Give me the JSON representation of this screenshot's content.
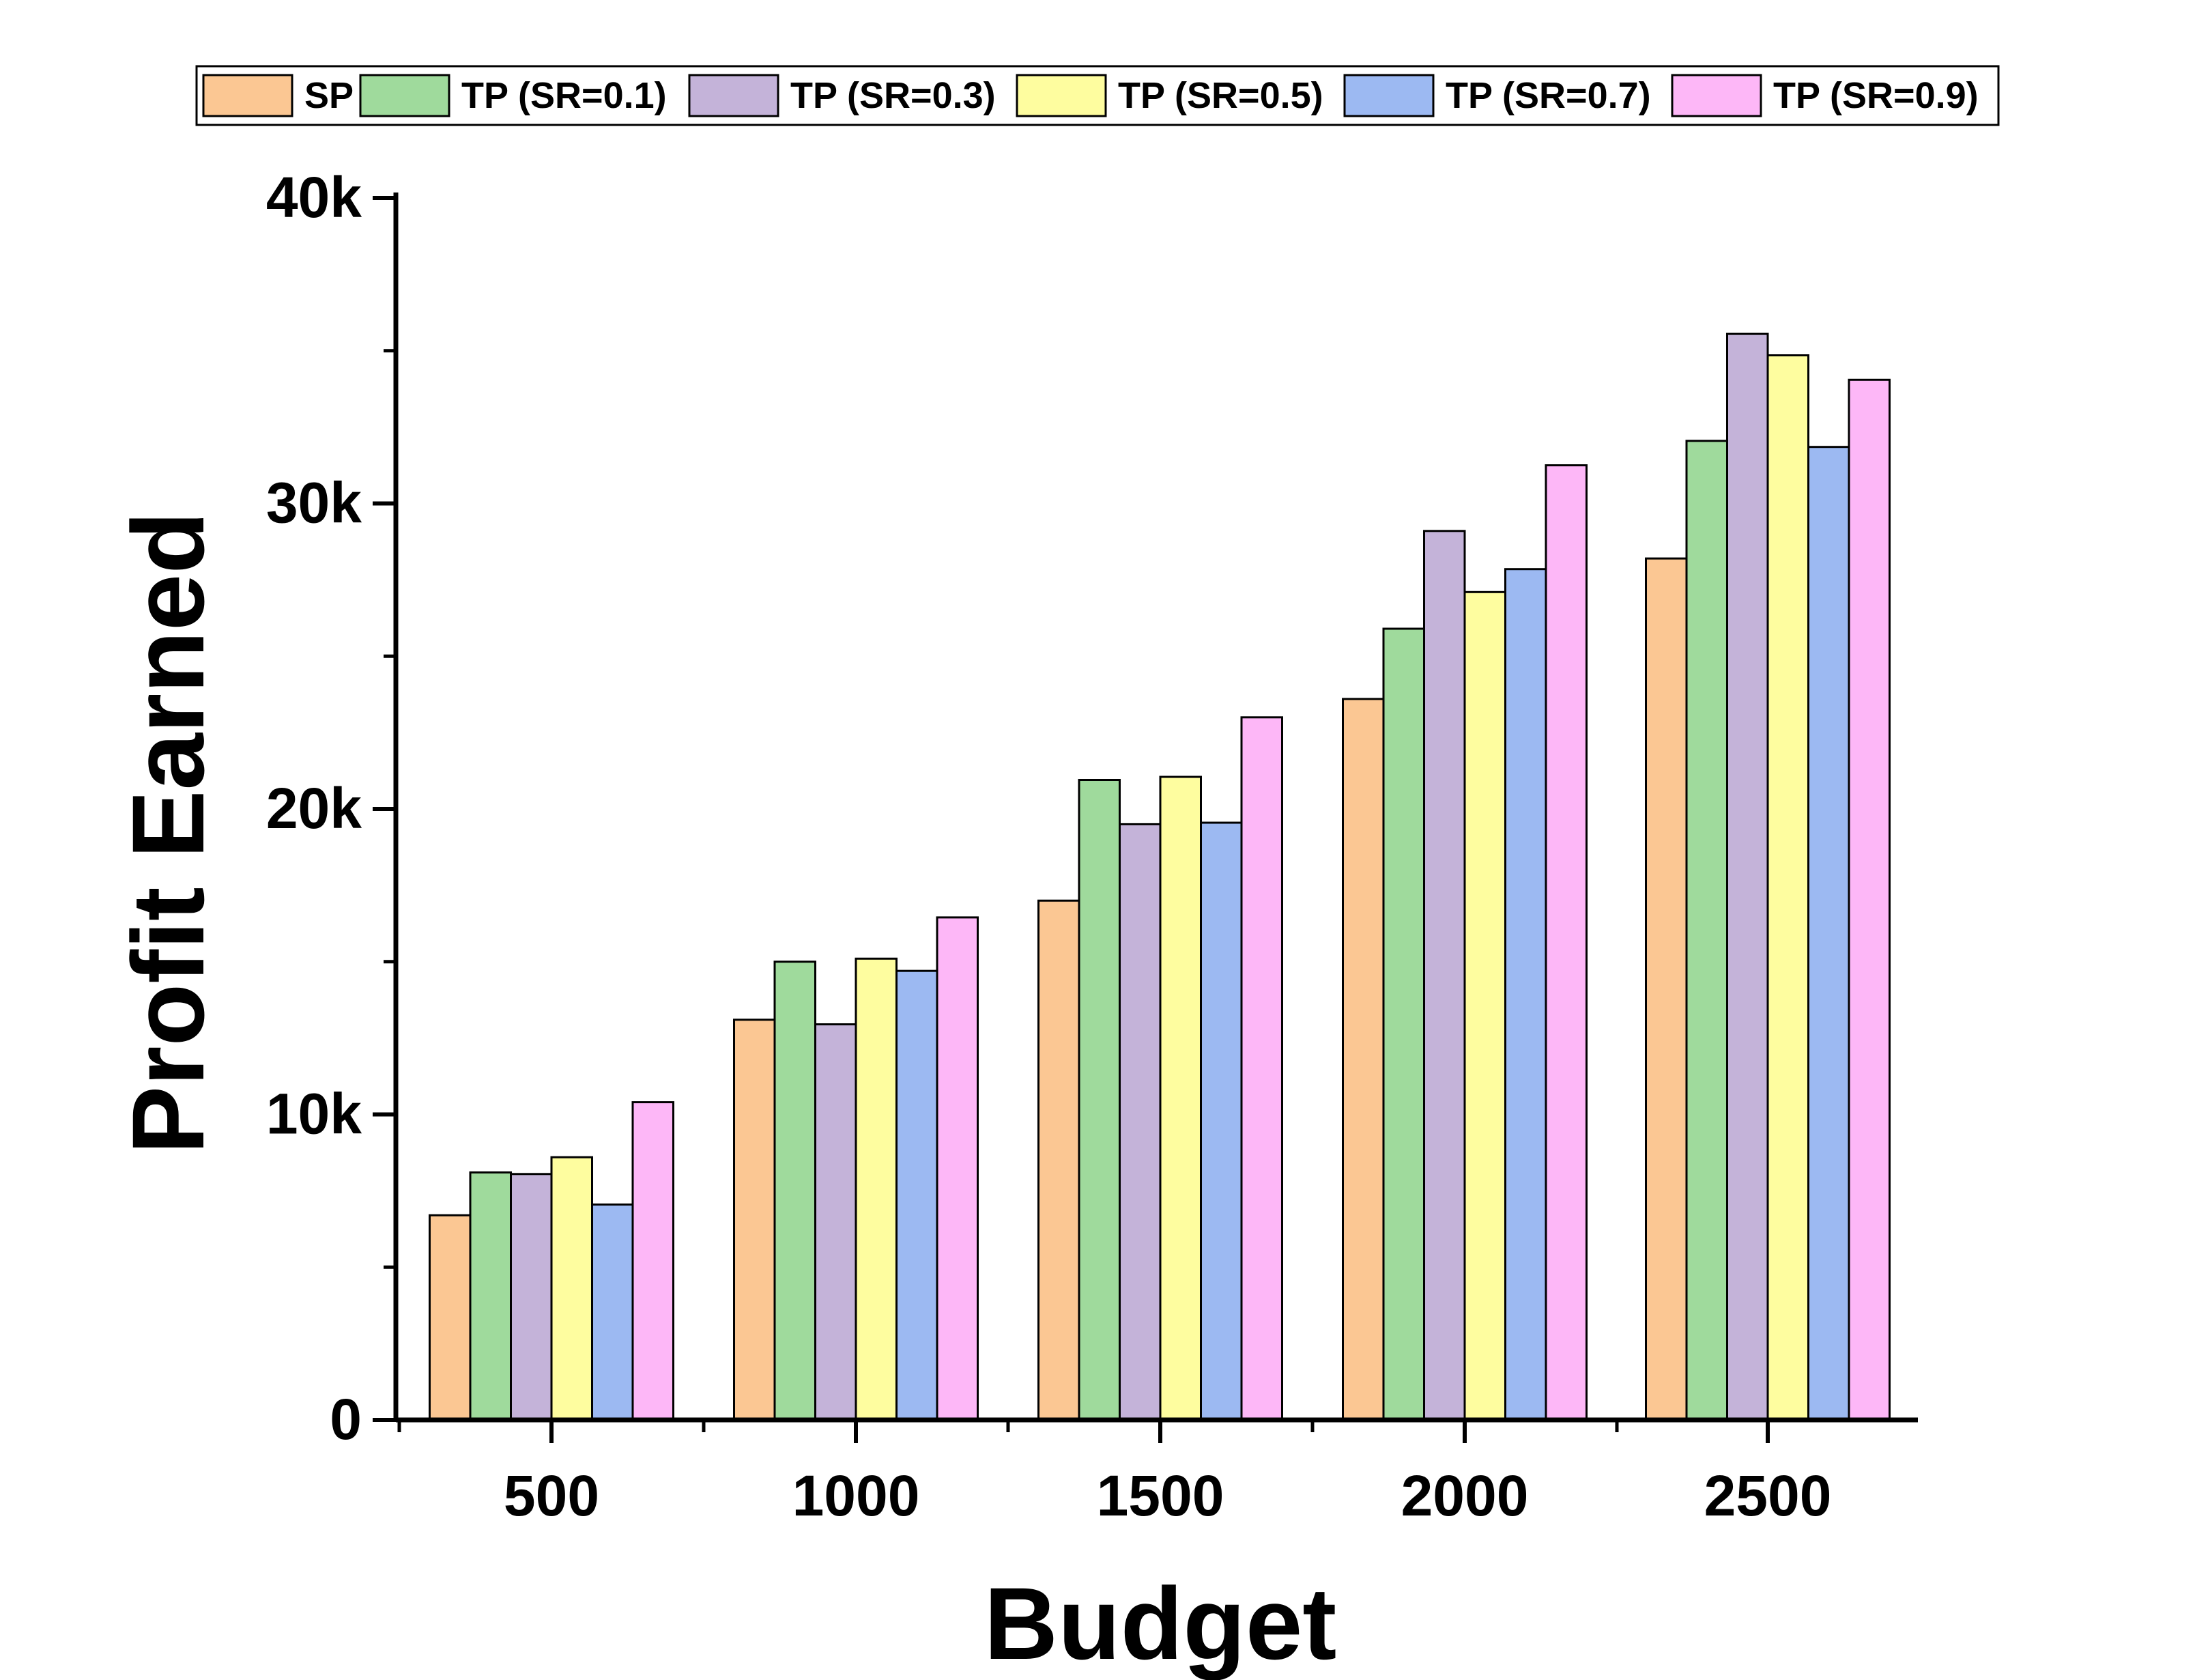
{
  "chart_data": {
    "type": "bar",
    "xlabel": "Budget",
    "ylabel": "Profit Earned",
    "categories": [
      "500",
      "1000",
      "1500",
      "2000",
      "2500"
    ],
    "ylim": [
      0,
      40000
    ],
    "yticks": [
      0,
      10000,
      20000,
      30000,
      40000
    ],
    "ytick_labels": [
      "0",
      "10k",
      "20k",
      "30k",
      "40k"
    ],
    "legend_position": "top",
    "series": [
      {
        "name": "SP",
        "color": "#FBC793",
        "values": [
          6700,
          13100,
          17000,
          23600,
          28200
        ]
      },
      {
        "name": "TP (SR=0.1)",
        "color": "#9FDA9C",
        "values": [
          8100,
          15000,
          20950,
          25900,
          32050
        ]
      },
      {
        "name": "TP (SR=0.3)",
        "color": "#C4B3D9",
        "values": [
          8050,
          12950,
          19500,
          29100,
          35550
        ]
      },
      {
        "name": "TP (SR=0.5)",
        "color": "#FEFD9F",
        "values": [
          8600,
          15100,
          21050,
          27100,
          34850
        ]
      },
      {
        "name": "TP (SR=0.7)",
        "color": "#9CB9F2",
        "values": [
          7050,
          14700,
          19550,
          27850,
          31850
        ]
      },
      {
        "name": "TP (SR=0.9)",
        "color": "#FDB7F7",
        "values": [
          10400,
          16450,
          23000,
          31250,
          34050
        ]
      }
    ]
  }
}
